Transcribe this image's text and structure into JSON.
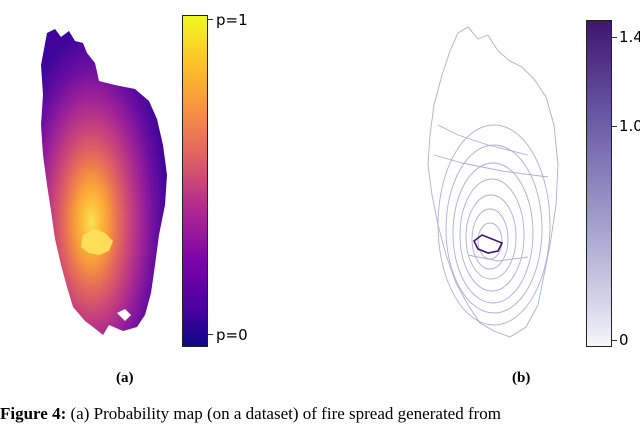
{
  "panel_a": {
    "label": "(a)",
    "colorbar": {
      "top_label": "p=1",
      "bottom_label": "p=0",
      "colormap": "plasma"
    }
  },
  "panel_b": {
    "label": "(b)",
    "colorbar": {
      "ticks": [
        "1.4",
        "1.0",
        "0"
      ],
      "color_low": "#f6f6fb",
      "color_high": "#3f1670"
    }
  },
  "caption": {
    "prefix": "Figure 4:",
    "text": " (a)  Probability map (on a dataset) of  fire spread generated from"
  }
}
